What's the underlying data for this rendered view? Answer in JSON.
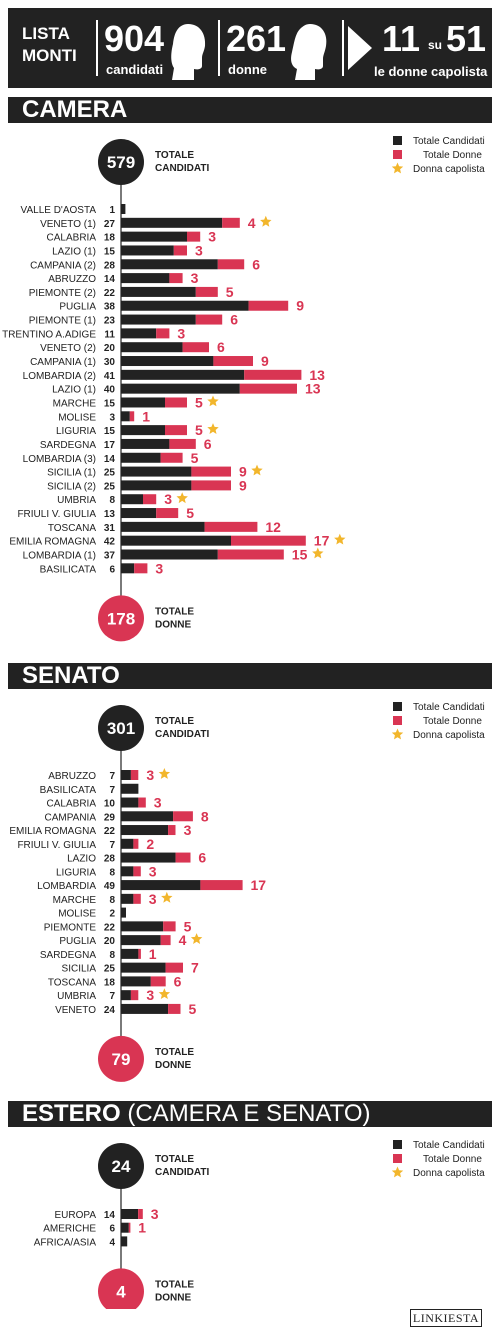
{
  "header": {
    "lista": "LISTA",
    "monti": "MONTI",
    "candidati_num": "904",
    "candidati_lbl": "candidati",
    "donne_num": "261",
    "donne_lbl": "donne",
    "capo_num1": "11",
    "su": "su",
    "capo_num2": "51",
    "capo_lbl": "le donne capolista"
  },
  "colors": {
    "dark": "#222222",
    "pink": "#d93553",
    "star": "#f2b62c"
  },
  "logo": "LINKIESTA",
  "chart_data": [
    {
      "type": "bar",
      "title": "CAMERA",
      "total_candidates": "579",
      "total_women": "178",
      "total_candidates_label": [
        "TOTALE",
        "CANDIDATI"
      ],
      "total_women_label": [
        "TOTALE",
        "DONNE"
      ],
      "legend": [
        "Totale Candidati",
        "Totale Donne",
        "Donna capolista"
      ],
      "scale": 4.4,
      "rows": [
        {
          "region": "VALLE D'AOSTA",
          "candidates": 1,
          "women": 0,
          "capolista": false
        },
        {
          "region": "VENETO (1)",
          "candidates": 27,
          "women": 4,
          "capolista": true
        },
        {
          "region": "CALABRIA",
          "candidates": 18,
          "women": 3,
          "capolista": false
        },
        {
          "region": "LAZIO (1)",
          "candidates": 15,
          "women": 3,
          "capolista": false
        },
        {
          "region": "CAMPANIA (2)",
          "candidates": 28,
          "women": 6,
          "capolista": false
        },
        {
          "region": "ABRUZZO",
          "candidates": 14,
          "women": 3,
          "capolista": false
        },
        {
          "region": "PIEMONTE (2)",
          "candidates": 22,
          "women": 5,
          "capolista": false
        },
        {
          "region": "PUGLIA",
          "candidates": 38,
          "women": 9,
          "capolista": false
        },
        {
          "region": "PIEMONTE (1)",
          "candidates": 23,
          "women": 6,
          "capolista": false
        },
        {
          "region": "TRENTINO A.ADIGE",
          "candidates": 11,
          "women": 3,
          "capolista": false
        },
        {
          "region": "VENETO (2)",
          "candidates": 20,
          "women": 6,
          "capolista": false
        },
        {
          "region": "CAMPANIA (1)",
          "candidates": 30,
          "women": 9,
          "capolista": false
        },
        {
          "region": "LOMBARDIA (2)",
          "candidates": 41,
          "women": 13,
          "capolista": false
        },
        {
          "region": "LAZIO (1)",
          "candidates": 40,
          "women": 13,
          "capolista": false
        },
        {
          "region": "MARCHE",
          "candidates": 15,
          "women": 5,
          "capolista": true
        },
        {
          "region": "MOLISE",
          "candidates": 3,
          "women": 1,
          "capolista": false
        },
        {
          "region": "LIGURIA",
          "candidates": 15,
          "women": 5,
          "capolista": true
        },
        {
          "region": "SARDEGNA",
          "candidates": 17,
          "women": 6,
          "capolista": false
        },
        {
          "region": "LOMBARDIA (3)",
          "candidates": 14,
          "women": 5,
          "capolista": false
        },
        {
          "region": "SICILIA (1)",
          "candidates": 25,
          "women": 9,
          "capolista": true
        },
        {
          "region": "SICILIA (2)",
          "candidates": 25,
          "women": 9,
          "capolista": false
        },
        {
          "region": "UMBRIA",
          "candidates": 8,
          "women": 3,
          "capolista": true
        },
        {
          "region": "FRIULI V. GIULIA",
          "candidates": 13,
          "women": 5,
          "capolista": false
        },
        {
          "region": "TOSCANA",
          "candidates": 31,
          "women": 12,
          "capolista": false
        },
        {
          "region": "EMILIA ROMAGNA",
          "candidates": 42,
          "women": 17,
          "capolista": true
        },
        {
          "region": "LOMBARDIA (1)",
          "candidates": 37,
          "women": 15,
          "capolista": true
        },
        {
          "region": "BASILICATA",
          "candidates": 6,
          "women": 3,
          "capolista": false
        }
      ]
    },
    {
      "type": "bar",
      "title": "SENATO",
      "total_candidates": "301",
      "total_women": "79",
      "total_candidates_label": [
        "TOTALE",
        "CANDIDATI"
      ],
      "total_women_label": [
        "TOTALE",
        "DONNE"
      ],
      "legend": [
        "Totale Candidati",
        "Totale Donne",
        "Donna capolista"
      ],
      "scale": 2.48,
      "rows": [
        {
          "region": "ABRUZZO",
          "candidates": 7,
          "women": 3,
          "capolista": true
        },
        {
          "region": "BASILICATA",
          "candidates": 7,
          "women": 0,
          "capolista": false
        },
        {
          "region": "CALABRIA",
          "candidates": 10,
          "women": 3,
          "capolista": false
        },
        {
          "region": "CAMPANIA",
          "candidates": 29,
          "women": 8,
          "capolista": false
        },
        {
          "region": "EMILIA ROMAGNA",
          "candidates": 22,
          "women": 3,
          "capolista": false
        },
        {
          "region": "FRIULI V. GIULIA",
          "candidates": 7,
          "women": 2,
          "capolista": false
        },
        {
          "region": "LAZIO",
          "candidates": 28,
          "women": 6,
          "capolista": false
        },
        {
          "region": "LIGURIA",
          "candidates": 8,
          "women": 3,
          "capolista": false
        },
        {
          "region": "LOMBARDIA",
          "candidates": 49,
          "women": 17,
          "capolista": false
        },
        {
          "region": "MARCHE",
          "candidates": 8,
          "women": 3,
          "capolista": true
        },
        {
          "region": "MOLISE",
          "candidates": 2,
          "women": 0,
          "capolista": false
        },
        {
          "region": "PIEMONTE",
          "candidates": 22,
          "women": 5,
          "capolista": false
        },
        {
          "region": "PUGLIA",
          "candidates": 20,
          "women": 4,
          "capolista": true
        },
        {
          "region": "SARDEGNA",
          "candidates": 8,
          "women": 1,
          "capolista": false
        },
        {
          "region": "SICILIA",
          "candidates": 25,
          "women": 7,
          "capolista": false
        },
        {
          "region": "TOSCANA",
          "candidates": 18,
          "women": 6,
          "capolista": false
        },
        {
          "region": "UMBRIA",
          "candidates": 7,
          "women": 3,
          "capolista": true
        },
        {
          "region": "VENETO",
          "candidates": 24,
          "women": 5,
          "capolista": false
        }
      ]
    },
    {
      "type": "bar",
      "title": "ESTERO",
      "title_suffix": "(CAMERA E SENATO)",
      "total_candidates": "24",
      "total_women": "4",
      "total_candidates_label": [
        "TOTALE",
        "CANDIDATI"
      ],
      "total_women_label": [
        "TOTALE",
        "DONNE"
      ],
      "legend": [
        "Totale Candidati",
        "Totale Donne",
        "Donna capolista"
      ],
      "scale": 1.55,
      "rows": [
        {
          "region": "EUROPA",
          "candidates": 14,
          "women": 3,
          "capolista": false
        },
        {
          "region": "AMERICHE",
          "candidates": 6,
          "women": 1,
          "capolista": false
        },
        {
          "region": "AFRICA/ASIA",
          "candidates": 4,
          "women": 0,
          "capolista": false
        }
      ]
    }
  ]
}
